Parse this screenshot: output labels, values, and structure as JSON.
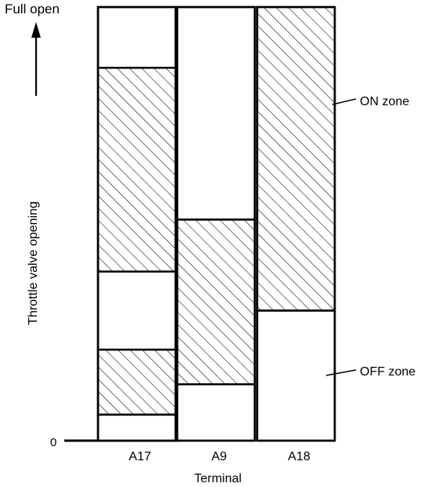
{
  "top_label": "Full open",
  "y_axis_label": "Throttle valve opening",
  "zero_label": "0",
  "x_axis_label": "Terminal",
  "on_zone_label": "ON zone",
  "off_zone_label": "OFF zone",
  "colors": {
    "ink": "#000000",
    "background": "#ffffff"
  },
  "chart_data": {
    "type": "bar",
    "categories": [
      "A17",
      "A9",
      "A18"
    ],
    "y_range": [
      0,
      1
    ],
    "zones": [
      {
        "terminal": "A17",
        "on_ranges": [
          [
            0.06,
            0.21
          ],
          [
            0.39,
            0.86
          ]
        ]
      },
      {
        "terminal": "A9",
        "on_ranges": [
          [
            0.13,
            0.51
          ]
        ]
      },
      {
        "terminal": "A18",
        "on_ranges": [
          [
            0.3,
            1.0
          ]
        ]
      }
    ]
  }
}
